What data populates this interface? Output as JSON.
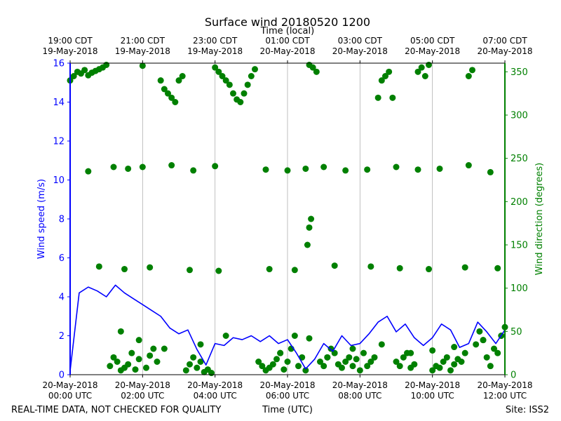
{
  "chart_data": {
    "type": "line+scatter",
    "title": "Surface wind 20180520 1200",
    "top_xlabel": "Time (local)",
    "xlabel": "Time (UTC)",
    "ylabel_left": "Wind speed (m/s)",
    "ylabel_right": "Wind direction (degrees)",
    "footer_left": "REAL-TIME DATA, NOT CHECKED FOR QUALITY",
    "footer_right": "Site: ISS2",
    "xlim_hours": [
      0,
      12
    ],
    "ylim_left": [
      0,
      16
    ],
    "ylim_right": [
      0,
      360
    ],
    "yticks_left": [
      "0",
      "2",
      "4",
      "6",
      "8",
      "10",
      "12",
      "14",
      "16"
    ],
    "yticks_right": [
      "0",
      "50",
      "100",
      "150",
      "200",
      "250",
      "300",
      "350"
    ],
    "bottom_ticks": [
      {
        "hour": 0,
        "line1": "20-May-2018",
        "line2": "00:00 UTC"
      },
      {
        "hour": 2,
        "line1": "20-May-2018",
        "line2": "02:00 UTC"
      },
      {
        "hour": 4,
        "line1": "20-May-2018",
        "line2": "04:00 UTC"
      },
      {
        "hour": 6,
        "line1": "20-May-2018",
        "line2": "06:00 UTC"
      },
      {
        "hour": 8,
        "line1": "20-May-2018",
        "line2": "08:00 UTC"
      },
      {
        "hour": 10,
        "line1": "20-May-2018",
        "line2": "10:00 UTC"
      },
      {
        "hour": 12,
        "line1": "20-May-2018",
        "line2": "12:00 UTC"
      }
    ],
    "top_ticks": [
      {
        "hour": 0,
        "line1": "19:00 CDT",
        "line2": "19-May-2018"
      },
      {
        "hour": 2,
        "line1": "21:00 CDT",
        "line2": "19-May-2018"
      },
      {
        "hour": 4,
        "line1": "23:00 CDT",
        "line2": "19-May-2018"
      },
      {
        "hour": 6,
        "line1": "01:00 CDT",
        "line2": "20-May-2018"
      },
      {
        "hour": 8,
        "line1": "03:00 CDT",
        "line2": "20-May-2018"
      },
      {
        "hour": 10,
        "line1": "05:00 CDT",
        "line2": "20-May-2018"
      },
      {
        "hour": 12,
        "line1": "07:00 CDT",
        "line2": "20-May-2018"
      }
    ],
    "colors": {
      "speed": "#0000ff",
      "direction": "#008000",
      "grid": "#b0b0b0",
      "axis": "#000000"
    },
    "series": [
      {
        "name": "Wind speed (m/s)",
        "axis": "left",
        "style": "line",
        "x": [
          0,
          0.25,
          0.5,
          0.75,
          1,
          1.25,
          1.5,
          1.75,
          2,
          2.25,
          2.5,
          2.75,
          3,
          3.25,
          3.5,
          3.75,
          4,
          4.25,
          4.5,
          4.75,
          5,
          5.25,
          5.5,
          5.75,
          6,
          6.25,
          6.5,
          6.75,
          7,
          7.25,
          7.5,
          7.75,
          8,
          8.25,
          8.5,
          8.75,
          9,
          9.25,
          9.5,
          9.75,
          10,
          10.25,
          10.5,
          10.75,
          11,
          11.25,
          11.5,
          11.75,
          12
        ],
        "values": [
          0.2,
          4.2,
          4.5,
          4.3,
          4.0,
          4.6,
          4.2,
          3.9,
          3.6,
          3.3,
          3.0,
          2.4,
          2.1,
          2.3,
          1.3,
          0.5,
          1.6,
          1.5,
          1.9,
          1.8,
          2.0,
          1.7,
          2.0,
          1.6,
          1.8,
          1.1,
          0.3,
          0.8,
          1.6,
          1.2,
          2.0,
          1.5,
          1.6,
          2.1,
          2.7,
          3.0,
          2.2,
          2.6,
          1.9,
          1.5,
          1.9,
          2.6,
          2.3,
          1.4,
          1.6,
          2.7,
          2.2,
          1.6,
          2.3
        ]
      },
      {
        "name": "Wind direction (degrees)",
        "axis": "right",
        "style": "scatter",
        "x": [
          0,
          0.1,
          0.2,
          0.3,
          0.4,
          0.5,
          0.6,
          0.7,
          0.8,
          0.9,
          1,
          1.1,
          1.2,
          1.3,
          1.4,
          1.5,
          1.6,
          1.7,
          1.8,
          1.9,
          2,
          2.1,
          2.2,
          2.3,
          2.4,
          2.5,
          2.6,
          2.7,
          2.8,
          2.9,
          3,
          3.1,
          3.2,
          3.3,
          3.4,
          3.5,
          3.6,
          3.7,
          3.8,
          3.9,
          4,
          4.1,
          4.2,
          4.3,
          4.4,
          4.5,
          4.6,
          4.7,
          4.8,
          4.9,
          5,
          5.1,
          5.2,
          5.3,
          5.4,
          5.5,
          5.6,
          5.7,
          5.8,
          5.9,
          6,
          6.1,
          6.2,
          6.3,
          6.4,
          6.5,
          6.6,
          6.7,
          6.8,
          6.9,
          7,
          7.1,
          7.2,
          7.3,
          7.4,
          7.5,
          7.6,
          7.7,
          7.8,
          7.9,
          8,
          8.1,
          8.2,
          8.3,
          8.4,
          8.5,
          8.6,
          8.7,
          8.8,
          8.9,
          9,
          9.1,
          9.2,
          9.3,
          9.4,
          9.5,
          9.6,
          9.7,
          9.8,
          9.9,
          10,
          10.1,
          10.2,
          10.3,
          10.4,
          10.5,
          10.6,
          10.7,
          10.8,
          10.9,
          11,
          11.1,
          11.2,
          11.3,
          11.4,
          11.5,
          11.6,
          11.7,
          11.8,
          11.9,
          12,
          0.5,
          1.2,
          1.6,
          2.0,
          2.8,
          3.4,
          4.0,
          5.4,
          6.0,
          6.5,
          7.0,
          7.6,
          8.2,
          9.0,
          9.6,
          10.2,
          11.0,
          11.6,
          0.8,
          1.5,
          2.2,
          3.3,
          4.1,
          5.5,
          6.2,
          7.3,
          8.3,
          9.1,
          9.9,
          10.9,
          11.8,
          1.4,
          1.9,
          2.6,
          3.6,
          4.3,
          5.8,
          6.6,
          7.1,
          7.8,
          8.6,
          9.4,
          10.0,
          10.6,
          11.4,
          11.9,
          6.55,
          6.6,
          6.65
        ],
        "values": [
          340,
          345,
          350,
          348,
          352,
          346,
          349,
          351,
          353,
          355,
          358,
          10,
          20,
          15,
          5,
          8,
          12,
          25,
          6,
          18,
          357,
          8,
          22,
          30,
          15,
          340,
          330,
          325,
          320,
          315,
          340,
          345,
          5,
          12,
          20,
          8,
          15,
          3,
          6,
          2,
          355,
          350,
          345,
          340,
          335,
          325,
          318,
          315,
          325,
          335,
          345,
          353,
          15,
          10,
          5,
          8,
          12,
          18,
          25,
          6,
          15,
          30,
          45,
          10,
          20,
          5,
          358,
          355,
          350,
          15,
          10,
          20,
          30,
          25,
          12,
          8,
          15,
          20,
          10,
          18,
          5,
          25,
          10,
          15,
          20,
          320,
          340,
          345,
          350,
          320,
          15,
          10,
          20,
          25,
          8,
          12,
          350,
          355,
          345,
          358,
          5,
          10,
          8,
          15,
          20,
          5,
          12,
          18,
          15,
          25,
          345,
          352,
          35,
          50,
          40,
          20,
          10,
          30,
          25,
          45,
          55,
          235,
          240,
          238,
          240,
          242,
          236,
          241,
          237,
          236,
          238,
          240,
          236,
          237,
          240,
          237,
          238,
          242,
          234,
          125,
          122,
          124,
          121,
          120,
          122,
          121,
          126,
          125,
          123,
          122,
          124,
          123,
          50,
          40,
          30,
          35,
          45,
          25,
          42,
          20,
          30,
          35,
          25,
          28,
          32,
          40,
          45,
          150,
          170,
          180
        ]
      }
    ]
  }
}
